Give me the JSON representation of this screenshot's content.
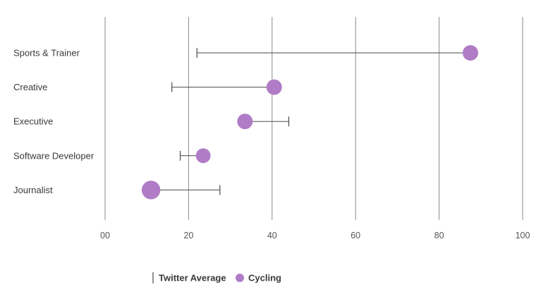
{
  "chart_data": {
    "type": "dot-range",
    "title": "",
    "xlabel": "",
    "ylabel": "",
    "xlim": [
      0,
      100
    ],
    "x_ticks": [
      0,
      20,
      40,
      60,
      80,
      100
    ],
    "x_tick_labels": [
      "00",
      "20",
      "40",
      "60",
      "80",
      "100"
    ],
    "grid": "vertical",
    "legend_position": "bottom-center",
    "colors": {
      "cycling": "#b07cc6",
      "line": "#4a4a4a",
      "grid": "#8a8a8a"
    },
    "categories": [
      "Sports & Trainer",
      "Creative",
      "Executive",
      "Software Developer",
      "Journalist"
    ],
    "series": [
      {
        "name": "Twitter Average",
        "values": [
          22,
          16,
          44,
          18,
          27.5
        ]
      },
      {
        "name": "Cycling",
        "values": [
          87.5,
          40.5,
          33.5,
          23.5,
          11
        ]
      }
    ],
    "dot_size_scale": [
      1,
      1,
      1,
      0.95,
      1.2
    ]
  }
}
